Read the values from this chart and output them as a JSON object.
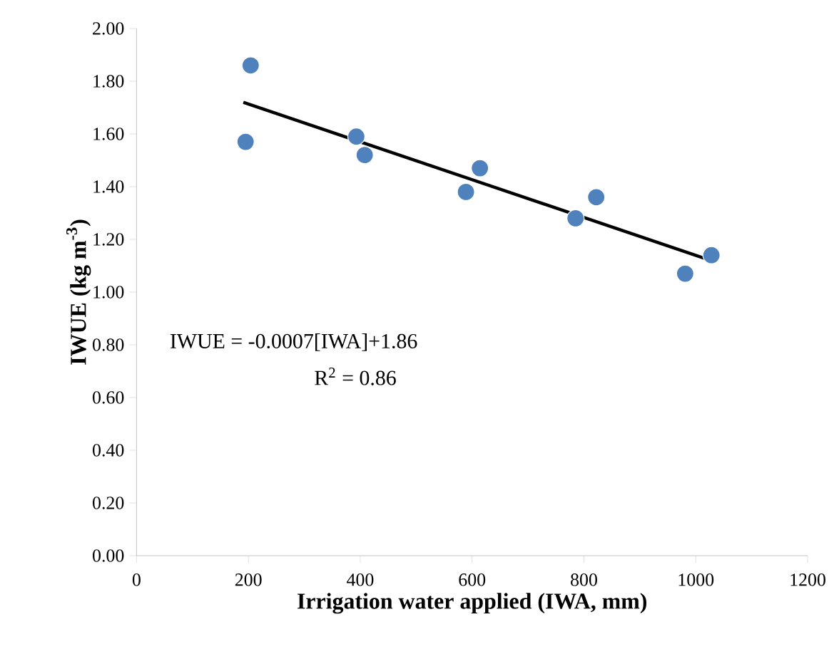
{
  "chart_data": {
    "type": "scatter",
    "xlabel": "Irrigation water applied (IWA, mm)",
    "ylabel": "IWUE (kg m$^{-3}$)",
    "annotations": [
      "IWUE = -0.0007[IWA]+1.86",
      "R$^{2}$ = 0.86"
    ],
    "series": [
      {
        "marker": "circle",
        "color": "#4f81bd",
        "x": [
          204,
          195,
          393,
          408,
          589,
          614,
          785,
          822,
          981,
          1028
        ],
        "values": [
          1.86,
          1.57,
          1.59,
          1.52,
          1.38,
          1.47,
          1.28,
          1.36,
          1.07,
          1.14
        ]
      },
      {
        "type": "line",
        "color": "#000000",
        "x": [
          191,
          1027
        ],
        "values": [
          1.72,
          1.12
        ]
      }
    ],
    "xlim": [
      0,
      1200
    ],
    "xticks": [
      0,
      200,
      400,
      600,
      800,
      1000,
      1200
    ],
    "ylim": [
      0,
      2
    ],
    "yticks": [
      {
        "value": 0,
        "label": "0.00"
      },
      {
        "value": 0.2,
        "label": "0.20"
      },
      {
        "value": 0.4,
        "label": "0.40"
      },
      {
        "value": 0.6,
        "label": "0.60"
      },
      {
        "value": 0.8,
        "label": "0.80"
      },
      {
        "value": 1.0,
        "label": "1.00"
      },
      {
        "value": 1.2,
        "label": "1.20"
      },
      {
        "value": 1.4,
        "label": "1.40"
      },
      {
        "value": 1.6,
        "label": "1.60"
      },
      {
        "value": 1.8,
        "label": "1.80"
      },
      {
        "value": 2.0,
        "label": "2.00"
      }
    ]
  }
}
